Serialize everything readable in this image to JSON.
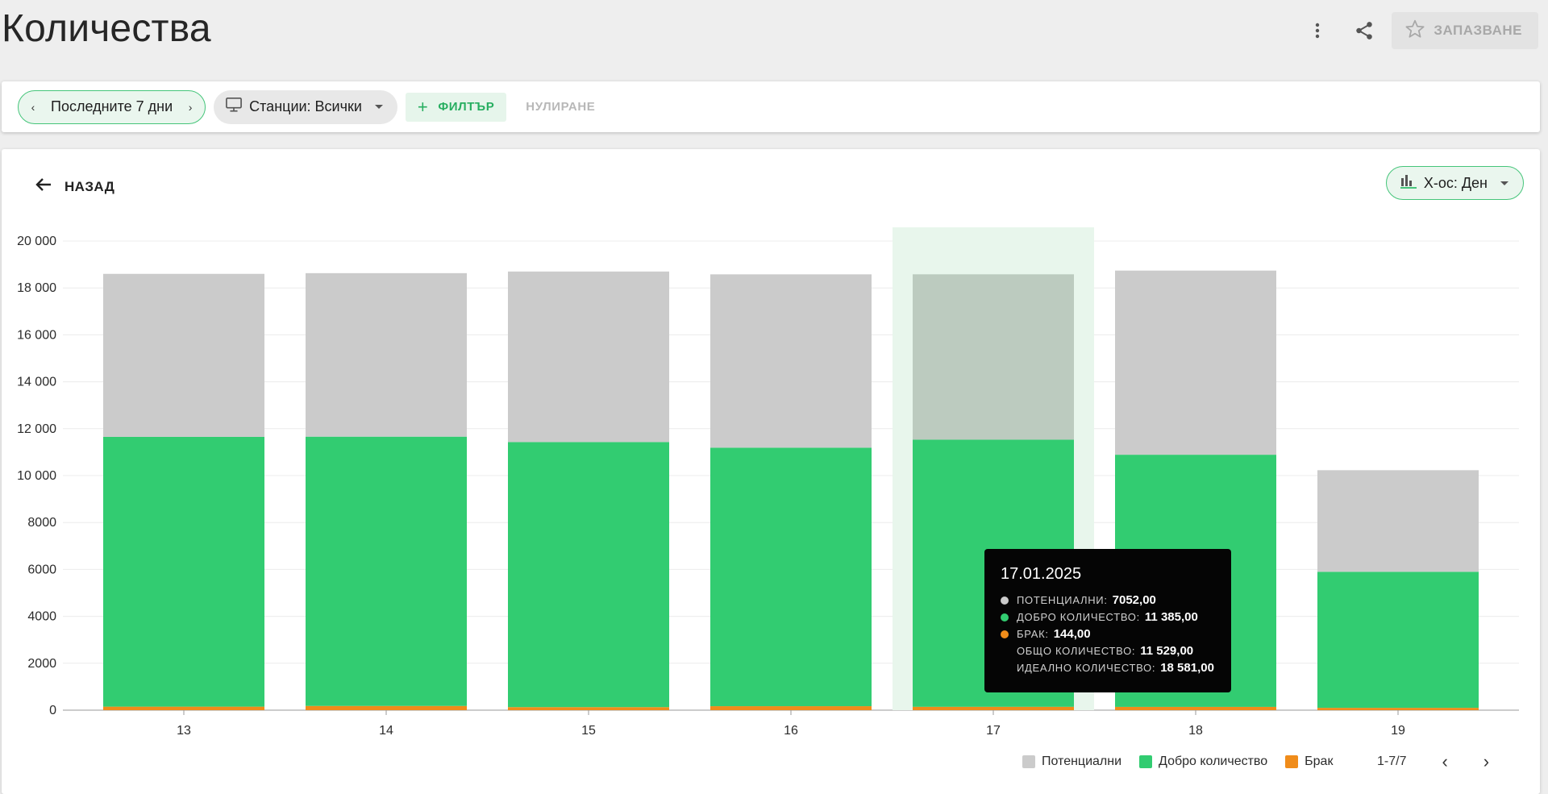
{
  "page": {
    "title": "Количества",
    "save_label": "ЗАПАЗВАНЕ",
    "icons": [
      "more-vert-icon",
      "share-icon",
      "star-icon"
    ]
  },
  "filters": {
    "period_label": "Последните 7 дни",
    "stations_label": "Станции: Всички",
    "filter_label": "ФИЛТЪР",
    "reset_label": "НУЛИРАНЕ"
  },
  "card": {
    "back_label": "НАЗАД",
    "xaxis_label": "X-ос: Ден"
  },
  "colors": {
    "potential": "#cbcbcb",
    "good": "#32cc71",
    "scrap": "#f08c1a",
    "highlight": "#e8f6ec",
    "accent": "#45c57a"
  },
  "chart_data": {
    "type": "bar",
    "stacked": true,
    "categories": [
      "13",
      "14",
      "15",
      "16",
      "17",
      "18",
      "19"
    ],
    "series": [
      {
        "name": "Брак",
        "values": [
          150,
          180,
          130,
          170,
          144,
          140,
          100
        ]
      },
      {
        "name": "Добро количество",
        "values": [
          11500,
          11480,
          11300,
          11020,
          11385,
          10750,
          5800
        ]
      },
      {
        "name": "Потенциални",
        "values": [
          6950,
          6970,
          7270,
          7390,
          7052,
          7850,
          4330
        ]
      }
    ],
    "y_ticks": [
      "0",
      "2000",
      "4000",
      "6000",
      "8000",
      "10 000",
      "12 000",
      "14 000",
      "16 000",
      "18 000",
      "20 000"
    ],
    "ylim": [
      0,
      20000
    ],
    "grid": true,
    "highlighted_category": "17",
    "legend": {
      "placement": "bottom-right",
      "items": [
        "Потенциални",
        "Добро количество",
        "Брак"
      ]
    },
    "pagination": "1-7/7",
    "tooltip": {
      "title": "17.01.2025",
      "rows": [
        {
          "label": "ПОТЕНЦИАЛНИ:",
          "value": "7052,00",
          "dot": "potential"
        },
        {
          "label": "ДОБРО КОЛИЧЕСТВО:",
          "value": "11 385,00",
          "dot": "good"
        },
        {
          "label": "БРАК:",
          "value": "144,00",
          "dot": "scrap"
        },
        {
          "label": "ОБЩО КОЛИЧЕСТВО:",
          "value": "11 529,00",
          "dot": ""
        },
        {
          "label": "ИДЕАЛНО КОЛИЧЕСТВО:",
          "value": "18 581,00",
          "dot": ""
        }
      ]
    }
  }
}
